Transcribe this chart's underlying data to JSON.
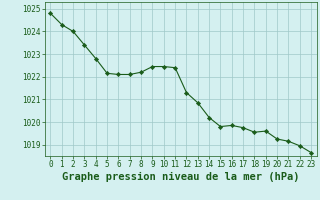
{
  "x": [
    0,
    1,
    2,
    3,
    4,
    5,
    6,
    7,
    8,
    9,
    10,
    11,
    12,
    13,
    14,
    15,
    16,
    17,
    18,
    19,
    20,
    21,
    22,
    23
  ],
  "y": [
    1024.8,
    1024.3,
    1024.0,
    1023.4,
    1022.8,
    1022.15,
    1022.1,
    1022.1,
    1022.2,
    1022.45,
    1022.45,
    1022.4,
    1021.3,
    1020.85,
    1020.2,
    1019.8,
    1019.85,
    1019.75,
    1019.55,
    1019.6,
    1019.25,
    1019.15,
    1018.95,
    1018.65
  ],
  "line_color": "#1a5c1a",
  "marker_color": "#1a5c1a",
  "bg_color": "#d4f0f0",
  "grid_color": "#a0c8c8",
  "xlabel": "Graphe pression niveau de la mer (hPa)",
  "ylim": [
    1018.5,
    1025.3
  ],
  "xlim": [
    -0.5,
    23.5
  ],
  "yticks": [
    1019,
    1020,
    1021,
    1022,
    1023,
    1024,
    1025
  ],
  "xticks": [
    0,
    1,
    2,
    3,
    4,
    5,
    6,
    7,
    8,
    9,
    10,
    11,
    12,
    13,
    14,
    15,
    16,
    17,
    18,
    19,
    20,
    21,
    22,
    23
  ],
  "tick_label_fontsize": 5.5,
  "xlabel_fontsize": 7.5
}
